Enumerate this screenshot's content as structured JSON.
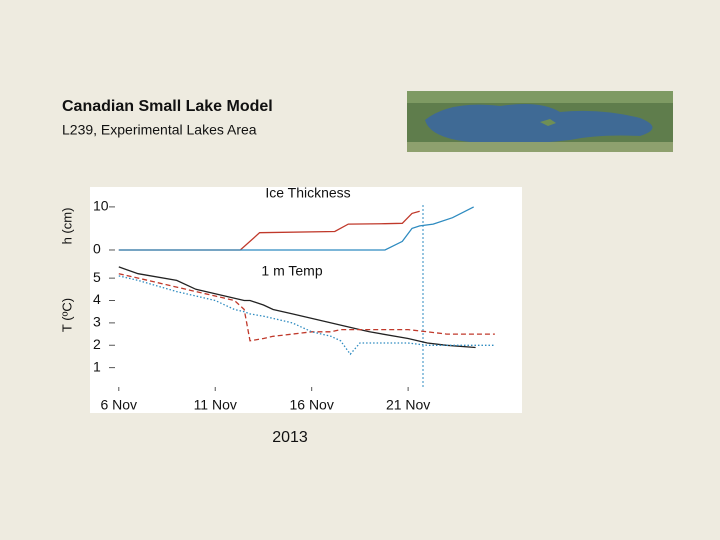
{
  "slide": {
    "title": "Canadian Small Lake Model",
    "subtitle": "L239, Experimental Lakes Area"
  },
  "chart_data": [
    {
      "type": "line",
      "title": "Ice Thickness",
      "y_label": "h (cm)",
      "x": [
        6,
        12.3,
        13.3,
        17.2,
        17.9,
        19.8,
        20.7,
        21.2,
        21.6,
        22.3,
        23.3,
        24.4
      ],
      "series": [
        {
          "color": "#c0392b",
          "style": "solid",
          "values": [
            0,
            0,
            4,
            4.3,
            6,
            6.1,
            6.2,
            8.5,
            9,
            null,
            null,
            null
          ]
        },
        {
          "color": "#2e8bc0",
          "style": "solid",
          "values": [
            0,
            0,
            0,
            0,
            0,
            0,
            2,
            5,
            5.6,
            6,
            7.5,
            10
          ]
        }
      ],
      "xlim": [
        5.7,
        26.8
      ],
      "ylim": [
        -0.7,
        11.6
      ],
      "yticks": [
        0,
        10
      ]
    },
    {
      "type": "line",
      "title": "1 m Temp",
      "y_label": "T (ºC)",
      "x_label": "2013",
      "x": [
        6,
        7,
        9,
        10,
        11,
        12,
        12.5,
        12.8,
        13.5,
        14,
        15,
        16,
        17,
        17.5,
        18,
        18.5,
        19,
        21,
        22,
        23,
        24.5,
        25.5
      ],
      "series": [
        {
          "color": "#222222",
          "style": "solid",
          "values": [
            5.5,
            5.2,
            4.9,
            4.5,
            4.3,
            4.1,
            4.0,
            4.0,
            3.8,
            3.6,
            3.4,
            3.2,
            3.0,
            2.9,
            2.8,
            2.7,
            2.6,
            2.3,
            2.1,
            2.0,
            1.9,
            null
          ]
        },
        {
          "color": "#c0392b",
          "style": "dashed",
          "values": [
            5.2,
            5.0,
            4.6,
            4.4,
            4.2,
            4.0,
            3.6,
            2.2,
            2.3,
            2.4,
            2.5,
            2.6,
            2.6,
            2.7,
            2.7,
            2.7,
            2.7,
            2.7,
            2.6,
            2.5,
            2.5,
            2.5
          ]
        },
        {
          "color": "#2e8bc0",
          "style": "dotted",
          "values": [
            5.1,
            4.9,
            4.4,
            4.2,
            4.0,
            3.6,
            3.5,
            3.4,
            3.3,
            3.2,
            3.0,
            2.6,
            2.4,
            2.2,
            1.6,
            2.1,
            2.1,
            2.1,
            2.0,
            2.0,
            2.0,
            2.0
          ]
        }
      ],
      "xlim": [
        5.7,
        26.8
      ],
      "ylim": [
        0,
        5.9
      ],
      "yticks": [
        1,
        2,
        3,
        4,
        5
      ],
      "xticks": [
        {
          "value": 6,
          "label": "6 Nov"
        },
        {
          "value": 11,
          "label": "11 Nov"
        },
        {
          "value": 16,
          "label": "16 Nov"
        },
        {
          "value": 21,
          "label": "21 Nov"
        }
      ]
    }
  ]
}
